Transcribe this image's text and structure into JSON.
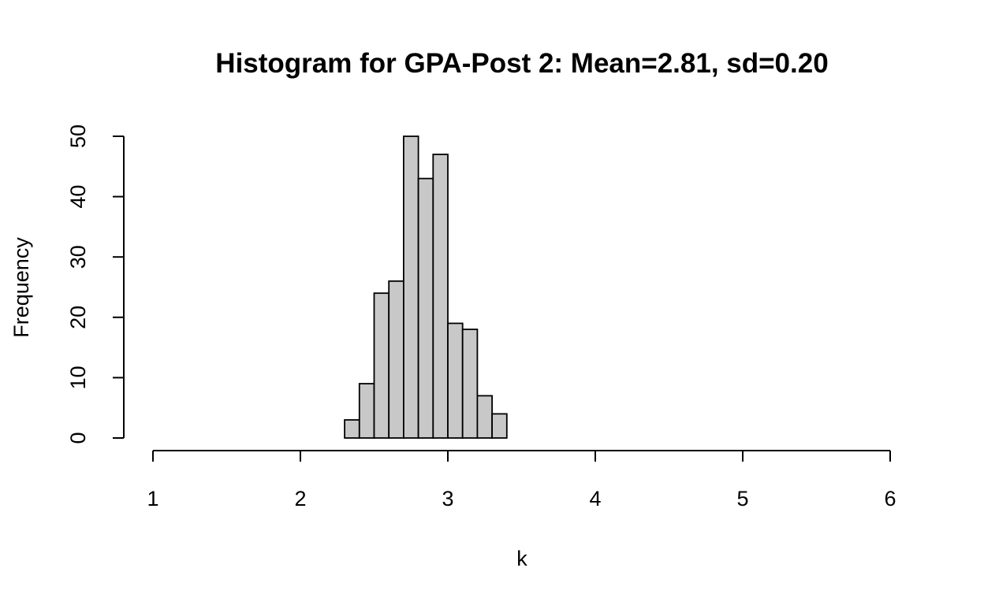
{
  "chart_data": {
    "type": "bar",
    "title": "Histogram for GPA-Post 2: Mean=2.81, sd=0.20",
    "xlabel": "k",
    "ylabel": "Frequency",
    "xlim": [
      1,
      6
    ],
    "ylim": [
      0,
      50
    ],
    "xticks": [
      "1",
      "2",
      "3",
      "4",
      "5",
      "6"
    ],
    "yticks": [
      "0",
      "10",
      "20",
      "30",
      "40",
      "50"
    ],
    "bin_width": 0.1,
    "bins": [
      {
        "start": 2.3,
        "end": 2.4,
        "value": 3
      },
      {
        "start": 2.4,
        "end": 2.5,
        "value": 9
      },
      {
        "start": 2.5,
        "end": 2.6,
        "value": 24
      },
      {
        "start": 2.6,
        "end": 2.7,
        "value": 26
      },
      {
        "start": 2.7,
        "end": 2.8,
        "value": 50
      },
      {
        "start": 2.8,
        "end": 2.9,
        "value": 43
      },
      {
        "start": 2.9,
        "end": 3.0,
        "value": 47
      },
      {
        "start": 3.0,
        "end": 3.1,
        "value": 19
      },
      {
        "start": 3.1,
        "end": 3.2,
        "value": 18
      },
      {
        "start": 3.2,
        "end": 3.3,
        "value": 7
      },
      {
        "start": 3.3,
        "end": 3.4,
        "value": 4
      }
    ],
    "grid": false,
    "bar_color": "#c8c8c8"
  }
}
